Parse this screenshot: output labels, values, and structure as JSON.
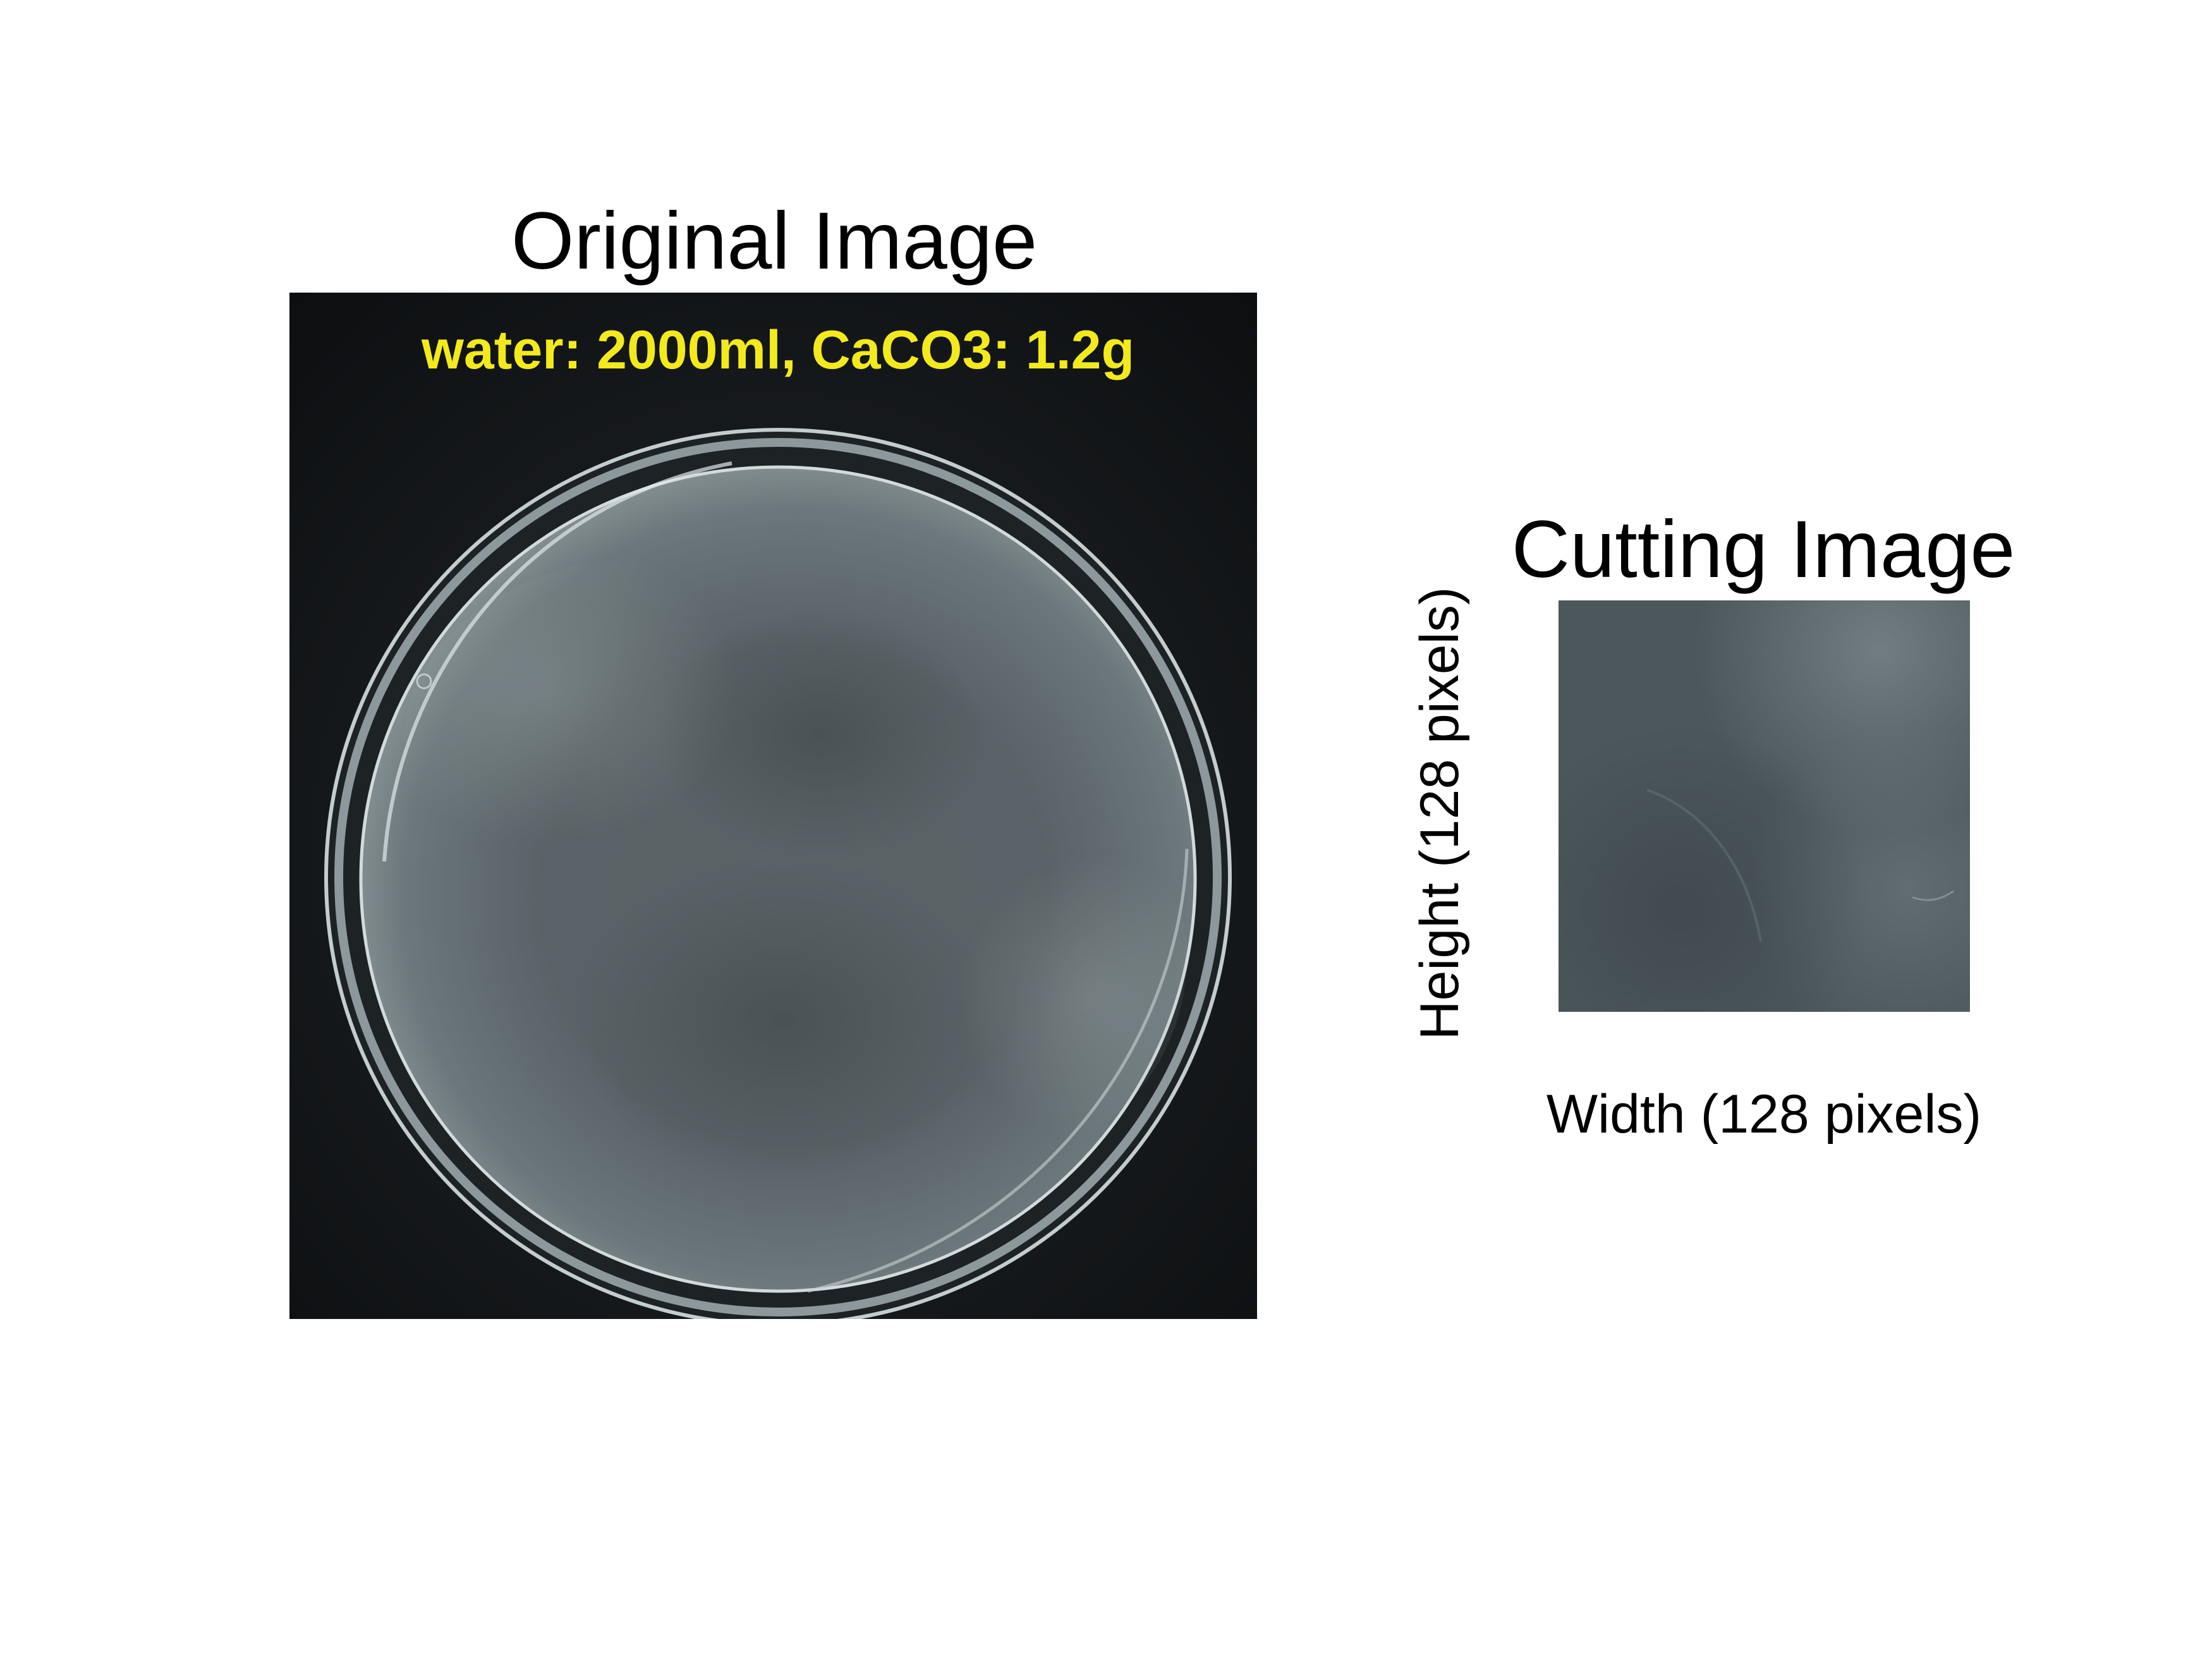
{
  "original": {
    "title": "Original Image",
    "overlay_text": "water: 2000ml, CaCO3: 1.2g",
    "overlay_color": "#f2ea1c",
    "background_color": "#101214",
    "dish_color": "#5b6468"
  },
  "cutting": {
    "title": "Cutting Image",
    "width_label": "Width (128 pixels)",
    "height_label": "Height (128 pixels)",
    "patch_color": "#4a5458"
  }
}
